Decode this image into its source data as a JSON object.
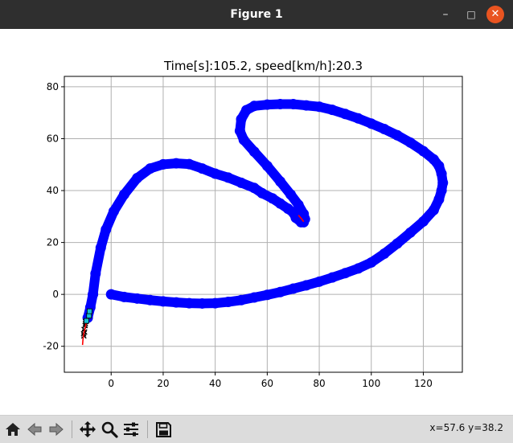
{
  "window": {
    "title": "Figure 1",
    "minimize_glyph": "–",
    "maximize_glyph": "□",
    "close_glyph": "✕"
  },
  "toolbar": {
    "buttons": [
      "home-icon",
      "back-icon",
      "forward-icon",
      "pan-icon",
      "zoom-icon",
      "configure-subplots-icon",
      "save-icon"
    ],
    "coords": "x=57.6 y=38.2"
  },
  "chart_data": {
    "type": "line",
    "title": "Time[s]:105.2, speed[km/h]:20.3",
    "xlim": [
      -18,
      135
    ],
    "ylim": [
      -30,
      84
    ],
    "xticks": [
      0,
      20,
      40,
      60,
      80,
      100,
      120
    ],
    "yticks": [
      -20,
      0,
      20,
      40,
      60,
      80
    ],
    "grid": true,
    "series": [
      {
        "color": "#0000ff",
        "marker": "circle",
        "x": [
          0,
          5,
          10,
          15,
          20,
          25,
          30,
          35,
          40,
          45,
          50,
          55,
          60,
          65,
          70,
          75,
          80,
          85,
          90,
          95,
          100,
          105,
          110,
          115,
          120,
          124,
          126,
          127,
          127.5,
          127,
          126,
          124,
          120,
          115,
          110,
          105,
          100,
          95,
          90,
          85,
          80,
          75,
          70,
          65,
          60,
          55,
          52,
          50,
          49.5,
          51,
          55,
          60,
          65,
          69,
          72,
          74,
          74.5,
          74,
          73,
          71,
          70,
          68,
          65,
          62,
          58,
          55,
          50,
          45,
          40,
          35,
          30,
          25,
          20,
          15,
          10,
          5,
          1,
          -2,
          -4,
          -6,
          -7,
          -8,
          -9
        ],
        "y": [
          0,
          -1,
          -1.6,
          -2.2,
          -2.7,
          -3.1,
          -3.4,
          -3.5,
          -3.4,
          -2.9,
          -2.2,
          -1.2,
          -0.2,
          0.9,
          2.2,
          3.5,
          4.9,
          6.5,
          8.2,
          10,
          12.3,
          15.7,
          19.6,
          23.8,
          28.1,
          32.5,
          36.6,
          40,
          43,
          46.5,
          49.5,
          52,
          55.2,
          58.5,
          61.3,
          63.7,
          65.8,
          67.8,
          69.5,
          71.1,
          72.3,
          72.8,
          73.3,
          73.3,
          73.1,
          72.6,
          71,
          67.5,
          63,
          59.5,
          55,
          49.5,
          43.5,
          38.5,
          34.5,
          31,
          29,
          27.8,
          27.8,
          29.5,
          31.5,
          33,
          35,
          37,
          39,
          41,
          43,
          45,
          46.5,
          48.5,
          50.2,
          50.5,
          50.1,
          48.5,
          44.8,
          38.5,
          32,
          25,
          18,
          8,
          0,
          -5,
          -9
        ]
      },
      {
        "color": "#ff0000",
        "marker": "line",
        "x": [
          72,
          73.3,
          74
        ],
        "y": [
          30.5,
          29,
          28
        ]
      },
      {
        "color": "#000000",
        "marker": "x",
        "x": [
          -9.8,
          -10,
          -10.4,
          -10.2,
          -10.6,
          -10.5,
          -9.9
        ],
        "y": [
          -10.5,
          -12,
          -13.5,
          -14.5,
          -15.2,
          -16,
          -11.3
        ]
      },
      {
        "color": "#ff0000",
        "marker": "line",
        "x": [
          -9.5,
          -10,
          -10.5,
          -10.8,
          -11
        ],
        "y": [
          -10.5,
          -13,
          -15,
          -17,
          -19.5
        ]
      },
      {
        "color": "#17becf",
        "marker": "square",
        "x": [
          -8.5,
          -9.5,
          -8.3
        ],
        "y": [
          -8.2,
          -10.2,
          -6.5
        ]
      }
    ]
  }
}
